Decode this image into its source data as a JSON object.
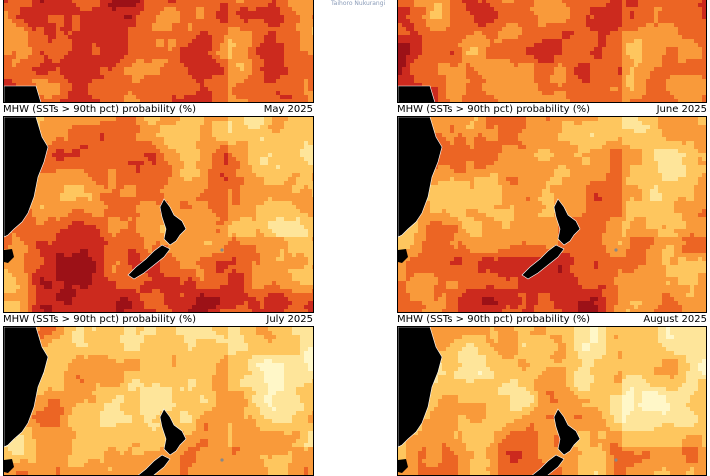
{
  "logo_text": "Taihoro Nukurangi",
  "panels": [
    {
      "title": "",
      "month": ""
    },
    {
      "title": "",
      "month": ""
    },
    {
      "title": "MHW (SSTs > 90th pct) probability (%)",
      "month": "May 2025"
    },
    {
      "title": "MHW (SSTs > 90th pct) probability (%)",
      "month": "June 2025"
    },
    {
      "title": "MHW (SSTs > 90th pct) probability (%)",
      "month": "July 2025"
    },
    {
      "title": "MHW (SSTs > 90th pct) probability (%)",
      "month": "August 2025"
    }
  ],
  "colors": {
    "level_1": "#fff7c8",
    "level_2": "#fee59a",
    "level_3": "#fec65e",
    "level_4": "#f99a3a",
    "level_5": "#ec6524",
    "level_6": "#cc2a1e",
    "level_7": "#9c1117",
    "land": "#000000",
    "coast": "#ffffff"
  },
  "intensity": [
    0.72,
    0.68,
    0.52,
    0.48,
    0.38,
    0.36
  ]
}
